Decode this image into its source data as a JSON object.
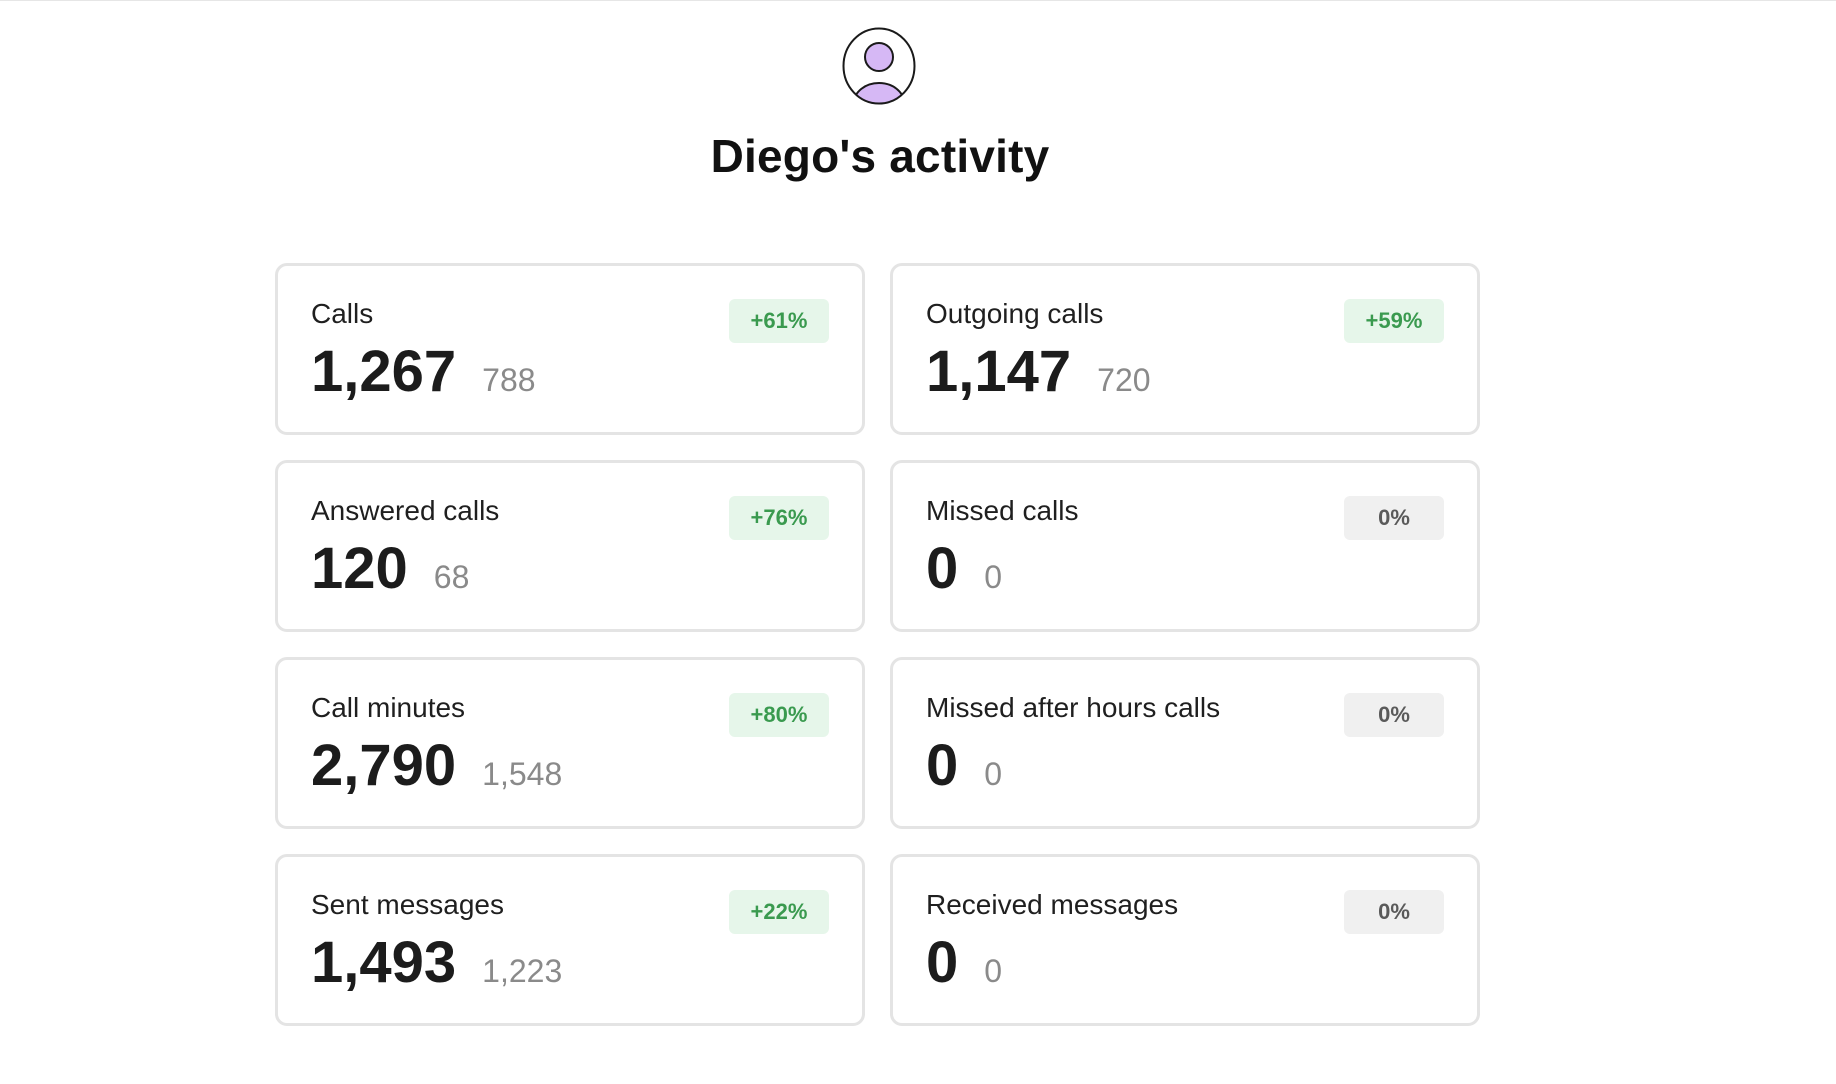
{
  "header": {
    "avatar_icon": "user-avatar-icon",
    "avatar_fill": "#d6b8f5",
    "title": "Diego's activity"
  },
  "colors": {
    "positive_badge_bg": "#e6f6ea",
    "positive_badge_text": "#3a9a4f",
    "neutral_badge_bg": "#f0f0f0",
    "neutral_badge_text": "#5a5a5a"
  },
  "cards": [
    {
      "id": "calls",
      "label": "Calls",
      "value": "1,267",
      "previous": "788",
      "change": "+61%",
      "trend": "up"
    },
    {
      "id": "outgoing-calls",
      "label": "Outgoing calls",
      "value": "1,147",
      "previous": "720",
      "change": "+59%",
      "trend": "up"
    },
    {
      "id": "answered-calls",
      "label": "Answered calls",
      "value": "120",
      "previous": "68",
      "change": "+76%",
      "trend": "up"
    },
    {
      "id": "missed-calls",
      "label": "Missed calls",
      "value": "0",
      "previous": "0",
      "change": "0%",
      "trend": "flat"
    },
    {
      "id": "call-minutes",
      "label": "Call minutes",
      "value": "2,790",
      "previous": "1,548",
      "change": "+80%",
      "trend": "up"
    },
    {
      "id": "missed-after-hours-calls",
      "label": "Missed after hours calls",
      "value": "0",
      "previous": "0",
      "change": "0%",
      "trend": "flat"
    },
    {
      "id": "sent-messages",
      "label": "Sent messages",
      "value": "1,493",
      "previous": "1,223",
      "change": "+22%",
      "trend": "up"
    },
    {
      "id": "received-messages",
      "label": "Received messages",
      "value": "0",
      "previous": "0",
      "change": "0%",
      "trend": "flat"
    }
  ]
}
